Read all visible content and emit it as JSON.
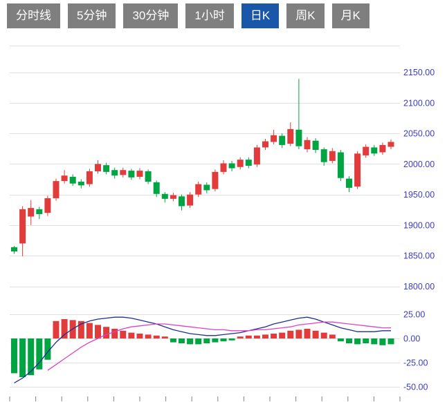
{
  "tabs": {
    "items": [
      {
        "label": "分时线",
        "active": false
      },
      {
        "label": "5分钟",
        "active": false
      },
      {
        "label": "30分钟",
        "active": false
      },
      {
        "label": "1小时",
        "active": false
      },
      {
        "label": "日K",
        "active": true
      },
      {
        "label": "周K",
        "active": false
      },
      {
        "label": "月K",
        "active": false
      }
    ]
  },
  "colors": {
    "up": "#e23b3b",
    "down": "#00a443",
    "dif_line": "#1b2f8f",
    "dea_line": "#e040c8",
    "grid": "#e0e0e0",
    "axis_label": "#3b3bc8",
    "tick_mark": "#808080",
    "tab_bg": "#7f7f7f",
    "tab_active_bg": "#1a57a8",
    "tab_text": "#ffffff"
  },
  "chart_data": {
    "type": "candlestick",
    "timeframe_selected": "日K",
    "legend_position": "none",
    "grid": true,
    "price_axis": {
      "side": "right",
      "ticks": [
        "2150.00",
        "2100.00",
        "2050.00",
        "2000.00",
        "1950.00",
        "1900.00",
        "1850.00",
        "1800.00"
      ],
      "min": 1800,
      "max": 2150
    },
    "candles_ohlc_format": [
      "open",
      "close",
      "low",
      "high"
    ],
    "candles": [
      [
        1864,
        1857,
        1853,
        1866
      ],
      [
        1870,
        1926,
        1849,
        1931
      ],
      [
        1914,
        1928,
        1900,
        1941
      ],
      [
        1926,
        1918,
        1910,
        1930
      ],
      [
        1920,
        1944,
        1915,
        1948
      ],
      [
        1944,
        1972,
        1940,
        1976
      ],
      [
        1972,
        1981,
        1968,
        1990
      ],
      [
        1979,
        1968,
        1964,
        1983
      ],
      [
        1971,
        1965,
        1960,
        1975
      ],
      [
        1967,
        1988,
        1963,
        1992
      ],
      [
        1988,
        2000,
        1984,
        2006
      ],
      [
        1998,
        1987,
        1983,
        2002
      ],
      [
        1990,
        1981,
        1976,
        1994
      ],
      [
        1982,
        1990,
        1978,
        1994
      ],
      [
        1989,
        1978,
        1974,
        1992
      ],
      [
        1979,
        1989,
        1975,
        1993
      ],
      [
        1988,
        1971,
        1967,
        1991
      ],
      [
        1970,
        1951,
        1946,
        1973
      ],
      [
        1951,
        1943,
        1937,
        1954
      ],
      [
        1943,
        1949,
        1939,
        1953
      ],
      [
        1947,
        1931,
        1924,
        1950
      ],
      [
        1932,
        1950,
        1928,
        1954
      ],
      [
        1950,
        1967,
        1946,
        1971
      ],
      [
        1966,
        1957,
        1952,
        1970
      ],
      [
        1959,
        1987,
        1955,
        1991
      ],
      [
        1987,
        2001,
        1983,
        2006
      ],
      [
        2001,
        1993,
        1988,
        2005
      ],
      [
        1995,
        2007,
        1991,
        2011
      ],
      [
        2007,
        1997,
        1993,
        2011
      ],
      [
        1999,
        2027,
        1995,
        2031
      ],
      [
        2027,
        2037,
        2023,
        2041
      ],
      [
        2036,
        2047,
        2032,
        2056
      ],
      [
        2046,
        2031,
        2026,
        2050
      ],
      [
        2033,
        2057,
        2029,
        2068
      ],
      [
        2056,
        2029,
        2024,
        2139
      ],
      [
        2024,
        2039,
        2019,
        2044
      ],
      [
        2038,
        2023,
        2018,
        2042
      ],
      [
        2024,
        2003,
        1997,
        2027
      ],
      [
        2005,
        2021,
        2001,
        2026
      ],
      [
        2019,
        1977,
        1972,
        2023
      ],
      [
        1976,
        1961,
        1954,
        1980
      ],
      [
        1963,
        2017,
        1959,
        2021
      ],
      [
        2014,
        2028,
        2010,
        2032
      ],
      [
        2027,
        2017,
        2013,
        2031
      ],
      [
        2019,
        2031,
        2015,
        2035
      ],
      [
        2028,
        2036,
        2024,
        2040
      ]
    ],
    "indicator": {
      "type": "macd",
      "axis": {
        "side": "right",
        "ticks": [
          "25.00",
          "0.00",
          "-25.00",
          "-50.00"
        ],
        "min": -50,
        "max": 25
      },
      "histogram": [
        -36,
        -40,
        -38,
        -32,
        -22,
        18,
        20,
        19,
        18,
        16,
        14,
        12,
        10,
        8,
        6,
        5,
        4,
        3,
        2,
        -4,
        -5,
        -6,
        -6,
        -5,
        -4,
        -3,
        -2,
        2,
        3,
        3,
        4,
        5,
        6,
        8,
        9,
        10,
        8,
        6,
        4,
        -3,
        -5,
        -6,
        -5,
        -6,
        -7,
        -6
      ],
      "dif": [
        -46,
        -41,
        -34,
        -25,
        -14,
        -4,
        4,
        10,
        15,
        18,
        20,
        21,
        22,
        22,
        21,
        19,
        17,
        15,
        12,
        9,
        7,
        5,
        4,
        3,
        3,
        4,
        5,
        6,
        8,
        10,
        12,
        15,
        17,
        19,
        21,
        22,
        20,
        17,
        14,
        11,
        9,
        7,
        7,
        7,
        8,
        8
      ],
      "dea": [
        null,
        null,
        null,
        null,
        -33,
        -27,
        -21,
        -15,
        -9,
        -4,
        0,
        4,
        7,
        10,
        12,
        13,
        14,
        15,
        15,
        14,
        13,
        12,
        11,
        10,
        9,
        9,
        8,
        8,
        8,
        9,
        9,
        10,
        11,
        12,
        14,
        15,
        16,
        17,
        17,
        16,
        15,
        14,
        13,
        12,
        11,
        11
      ]
    }
  }
}
